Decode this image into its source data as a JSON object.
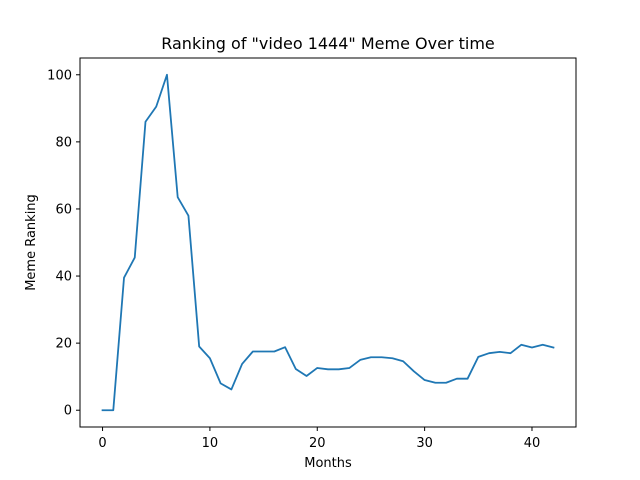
{
  "chart_data": {
    "type": "line",
    "title": "Ranking of \"video 1444\" Meme Over time",
    "xlabel": "Months",
    "ylabel": "Meme Ranking",
    "xlim": [
      -2.1,
      44.1
    ],
    "ylim": [
      -5,
      105
    ],
    "xticks": [
      0,
      10,
      20,
      30,
      40
    ],
    "yticks": [
      0,
      20,
      40,
      60,
      80,
      100
    ],
    "grid": false,
    "series": [
      {
        "color": "#1f77b4",
        "x": [
          0,
          1,
          2,
          3,
          4,
          5,
          6,
          7,
          8,
          9,
          10,
          11,
          12,
          13,
          14,
          15,
          16,
          17,
          18,
          19,
          20,
          21,
          22,
          23,
          24,
          25,
          26,
          27,
          28,
          29,
          30,
          31,
          32,
          33,
          34,
          35,
          36,
          37,
          38,
          39,
          40,
          41,
          42
        ],
        "y": [
          0,
          0,
          39.5,
          45.5,
          86,
          90.5,
          100,
          63.5,
          58,
          19,
          15.5,
          8,
          6.2,
          13.8,
          17.5,
          17.5,
          17.5,
          18.8,
          12.3,
          10.2,
          12.6,
          12.2,
          12.2,
          12.6,
          15,
          15.8,
          15.8,
          15.5,
          14.6,
          11.6,
          9,
          8.2,
          8.2,
          9.4,
          9.4,
          15.9,
          17,
          17.4,
          17,
          19.5,
          18.7,
          19.5,
          18.7
        ]
      }
    ]
  }
}
